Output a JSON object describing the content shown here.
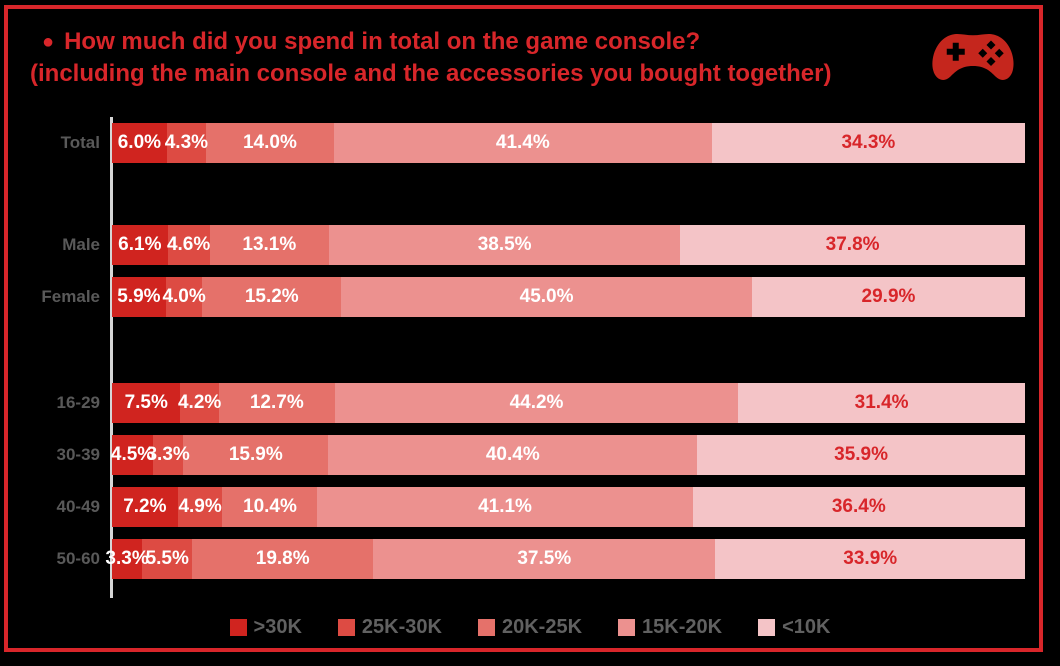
{
  "page": {
    "background_color": "#000000",
    "border_color": "#d8262a"
  },
  "header": {
    "bullet": "●",
    "title_line1": "How much did you spend in total on the game console?",
    "title_line2": "(including the main console and the accessories you bought together)",
    "title_color": "#d8262a"
  },
  "icons": {
    "gamepad_color": "#c5261d"
  },
  "chart_data": {
    "type": "bar",
    "orientation": "horizontal-stacked",
    "unit": "%",
    "xlim": [
      0,
      100
    ],
    "grid": false,
    "legend_position": "bottom",
    "value_labels": true,
    "label_color_on_dark_segments": "#ffffff",
    "label_color_on_lightest_segment": "#d8262a",
    "category_label_color": "#595959",
    "categories": [
      "Total",
      "Male",
      "Female",
      "16-29",
      "30-39",
      "40-49",
      "50-60"
    ],
    "category_groups": [
      [
        "Total"
      ],
      [
        "Male",
        "Female"
      ],
      [
        "16-29",
        "30-39",
        "40-49",
        "50-60"
      ]
    ],
    "series": [
      {
        "name": ">30K",
        "color": "#d0241f",
        "values": [
          6.0,
          6.1,
          5.9,
          7.5,
          4.5,
          7.2,
          3.3
        ]
      },
      {
        "name": "25K-30K",
        "color": "#dd4b43",
        "values": [
          4.3,
          4.6,
          4.0,
          4.2,
          3.3,
          4.9,
          5.5
        ]
      },
      {
        "name": "20K-25K",
        "color": "#e5716a",
        "values": [
          14.0,
          13.1,
          15.2,
          12.7,
          15.9,
          10.4,
          19.8
        ]
      },
      {
        "name": "15K-20K",
        "color": "#ec918f",
        "values": [
          41.4,
          38.5,
          45.0,
          44.2,
          40.4,
          41.1,
          37.5
        ]
      },
      {
        "name": "<10K",
        "color": "#f4c4c7",
        "values": [
          34.3,
          37.8,
          29.9,
          31.4,
          35.9,
          36.4,
          33.9
        ]
      }
    ]
  },
  "legend": {
    "items": [
      ">30K",
      "25K-30K",
      "20K-25K",
      "15K-20K",
      "<10K"
    ]
  }
}
